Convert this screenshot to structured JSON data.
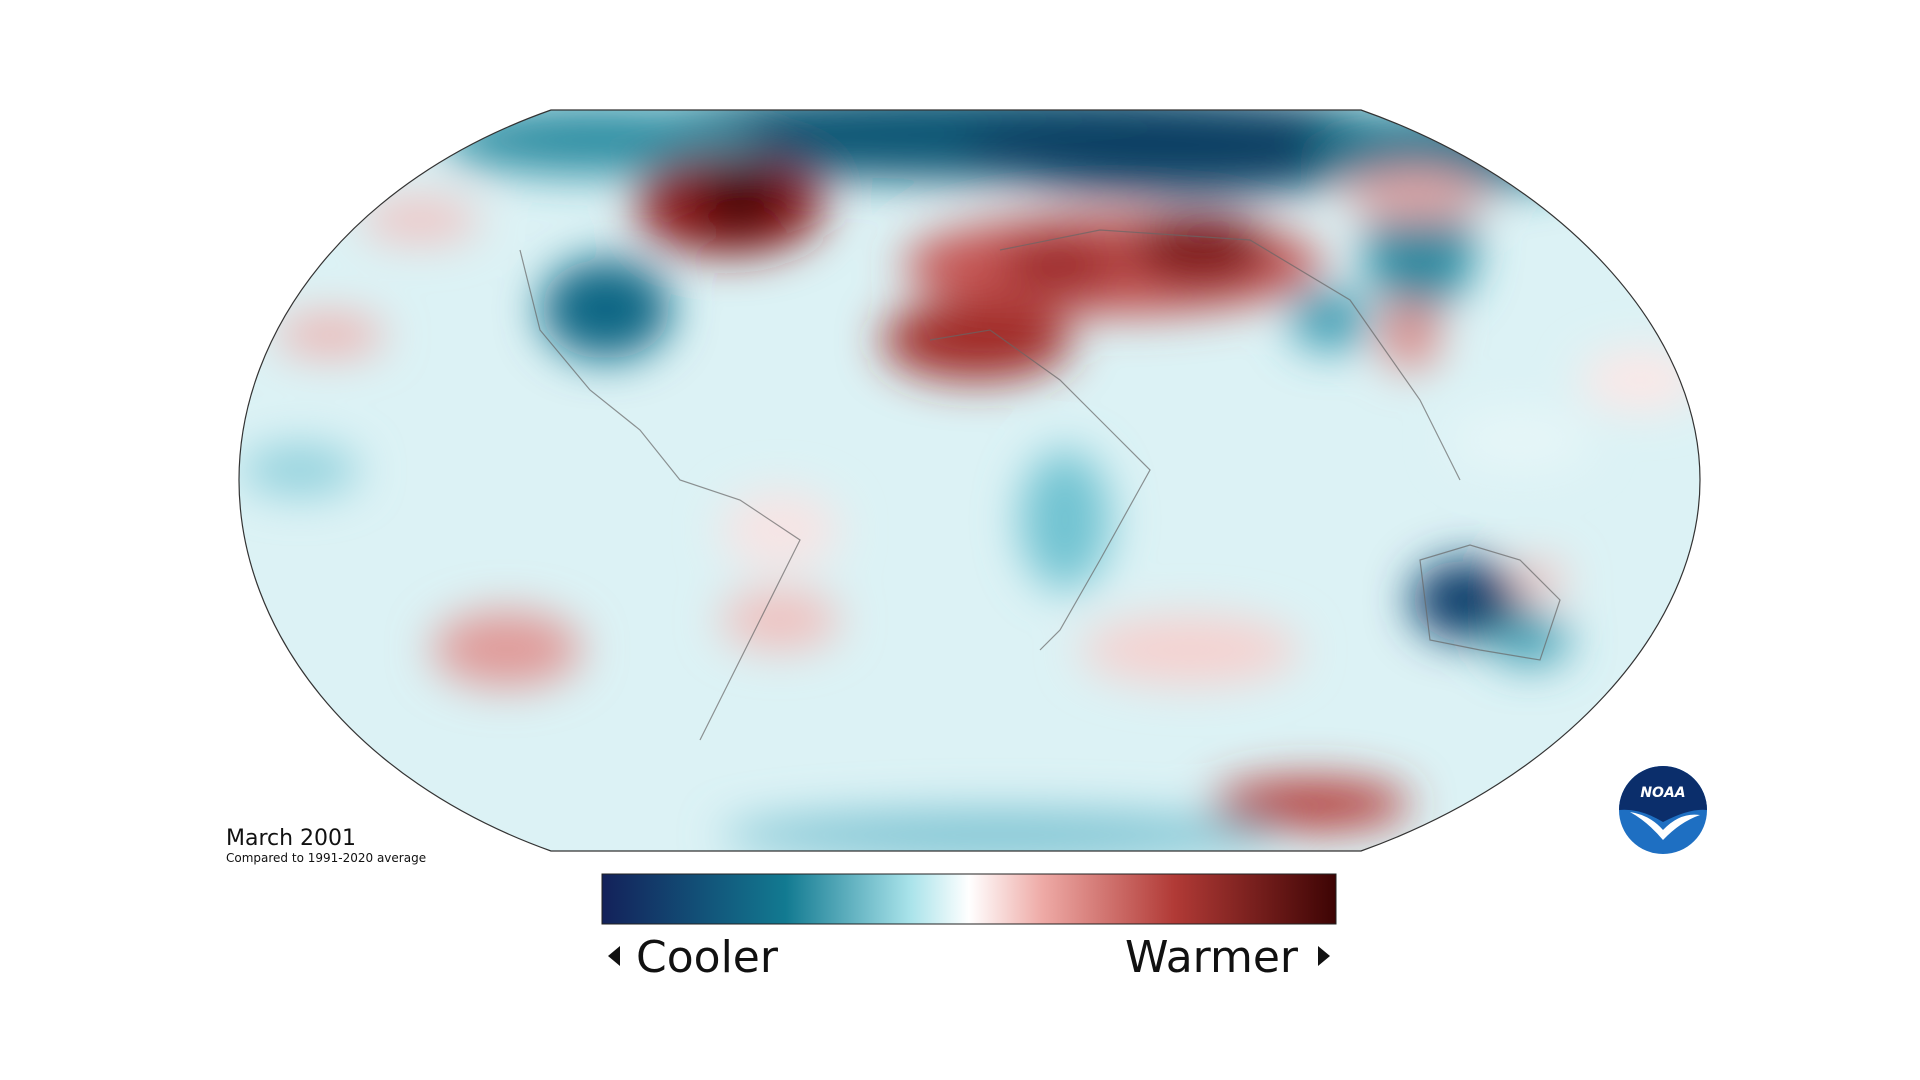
{
  "map": {
    "date": "March 2001",
    "subtitle": "Compared to 1991-2020 average"
  },
  "legend": {
    "low": "Cooler",
    "high": "Warmer"
  },
  "logo": "NOAA"
}
